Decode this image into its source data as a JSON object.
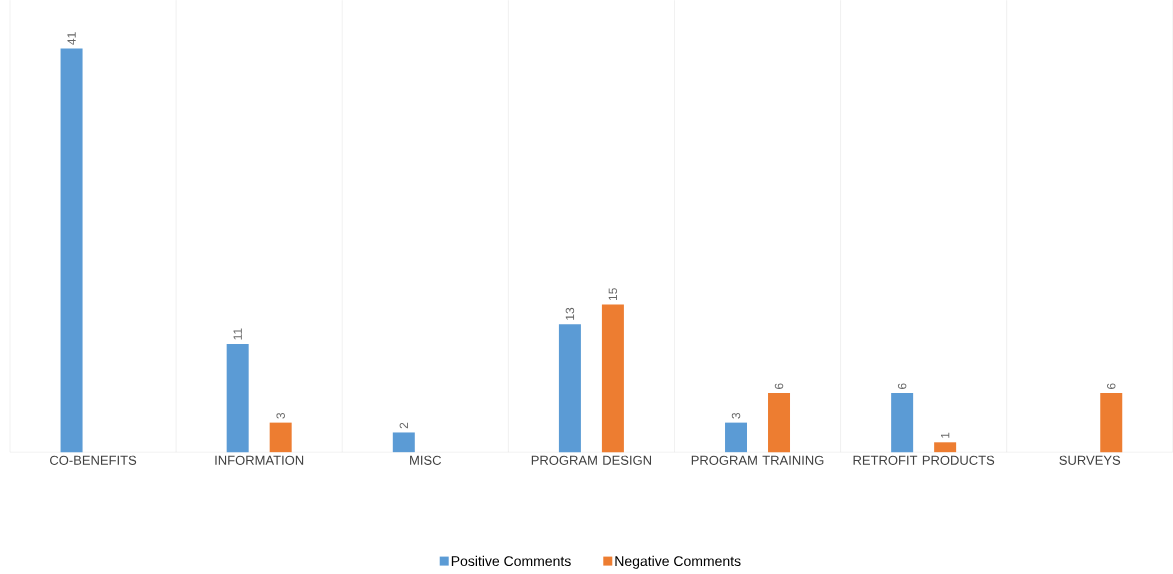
{
  "chart_data": {
    "type": "bar",
    "categories": [
      "CO-BENEFITS",
      "INFORMATION",
      "MISC",
      "PROGRAM DESIGN",
      "PROGRAM TRAINING",
      "RETROFIT PRODUCTS",
      "SURVEYS"
    ],
    "series": [
      {
        "name": "Positive Comments",
        "color": "#5b9bd5",
        "values": [
          41,
          11,
          2,
          13,
          3,
          6,
          null
        ]
      },
      {
        "name": "Negative Comments",
        "color": "#ed7d31",
        "values": [
          null,
          3,
          null,
          15,
          6,
          1,
          6
        ]
      }
    ],
    "data_labels": true,
    "grid": "x",
    "legend": "bottom"
  }
}
